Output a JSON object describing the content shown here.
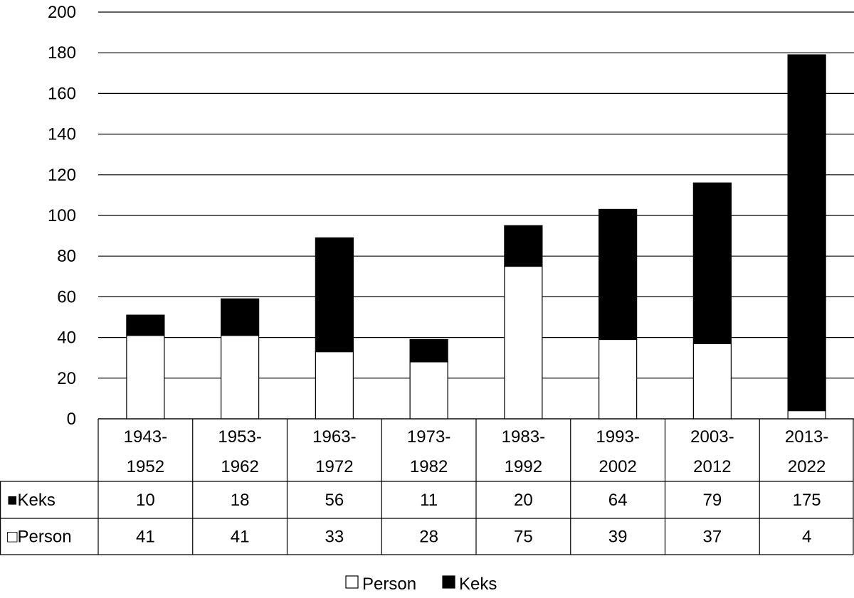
{
  "chart_data": {
    "type": "bar",
    "stacked": true,
    "title": "",
    "xlabel": "",
    "ylabel": "",
    "ylim": [
      0,
      200
    ],
    "yticks": [
      0,
      20,
      40,
      60,
      80,
      100,
      120,
      140,
      160,
      180,
      200
    ],
    "grid": true,
    "legend_position": "bottom",
    "data_table": true,
    "categories": [
      [
        "1943-",
        "1952"
      ],
      [
        "1953-",
        "1962"
      ],
      [
        "1963-",
        "1972"
      ],
      [
        "1973-",
        "1982"
      ],
      [
        "1983-",
        "1992"
      ],
      [
        "1993-",
        "2002"
      ],
      [
        "2003-",
        "2012"
      ],
      [
        "2013-",
        "2022"
      ]
    ],
    "series": [
      {
        "name": "Person",
        "values": [
          41,
          41,
          33,
          28,
          75,
          39,
          37,
          4
        ],
        "color": "#ffffff",
        "marker": "□"
      },
      {
        "name": "Keks",
        "values": [
          10,
          18,
          56,
          11,
          20,
          64,
          79,
          175
        ],
        "color": "#000000",
        "marker": "■"
      }
    ]
  }
}
